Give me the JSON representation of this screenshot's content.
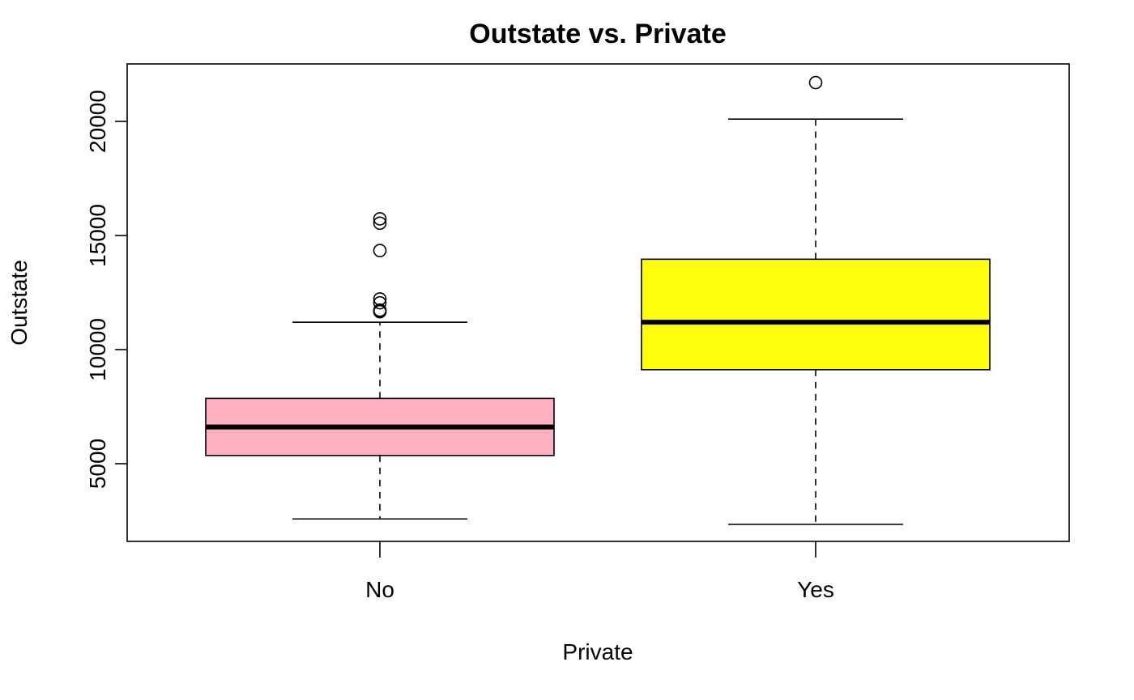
{
  "chart_data": {
    "type": "boxplot",
    "title": "Outstate vs. Private",
    "xlabel": "Private",
    "ylabel": "Outstate",
    "categories": [
      "No",
      "Yes"
    ],
    "ylim": [
      2000,
      22500
    ],
    "yticks": [
      5000,
      10000,
      15000,
      20000
    ],
    "grid": false,
    "boxes": [
      {
        "category": "No",
        "color": "#FFB0C1",
        "whisker_low": 2580,
        "q1": 5360,
        "median": 6610,
        "q3": 7860,
        "whisker_high": 11200,
        "outliers": [
          11660,
          11700,
          11730,
          12050,
          12220,
          14340,
          15540,
          15730
        ]
      },
      {
        "category": "Yes",
        "color": "#FFFF0D",
        "whisker_low": 2340,
        "q1": 9120,
        "median": 11200,
        "q3": 13960,
        "whisker_high": 20100,
        "outliers": [
          21700
        ]
      }
    ]
  }
}
